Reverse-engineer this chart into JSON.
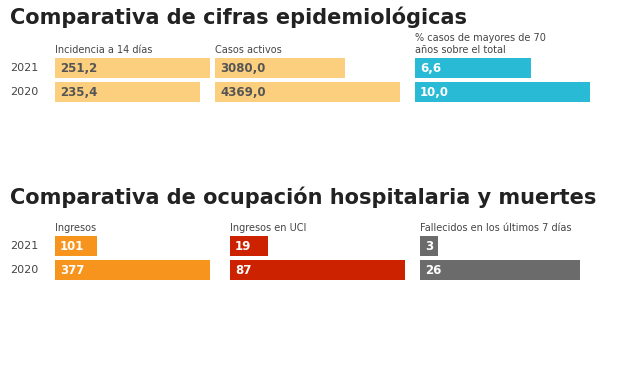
{
  "title1": "Comparativa de cifras epidemiológicas",
  "title2": "Comparativa de ocupación hospitalaria y muertes",
  "section1": {
    "col_labels": [
      "Incidencia a 14 días",
      "Casos activos",
      "% casos de mayores de 70\naños sobre el total"
    ],
    "groups": [
      {
        "color": "#FBCF7D",
        "values": [
          251.2,
          235.4
        ],
        "max_ref": 251.2,
        "display": [
          "251,2",
          "235,4"
        ],
        "text_color": "#555555"
      },
      {
        "color": "#FBCF7D",
        "values": [
          3080.0,
          4369.0
        ],
        "max_ref": 4369.0,
        "display": [
          "3080,0",
          "4369,0"
        ],
        "text_color": "#555555"
      },
      {
        "color": "#29BAD6",
        "values": [
          6.6,
          10.0
        ],
        "max_ref": 10.0,
        "display": [
          "6,6",
          "10,0"
        ],
        "text_color": "#FFFFFF"
      }
    ],
    "years": [
      "2021",
      "2020"
    ]
  },
  "section2": {
    "col_labels": [
      "Ingresos",
      "Ingresos en UCI",
      "Fallecidos en los últimos 7 días"
    ],
    "groups": [
      {
        "color": "#F7941D",
        "values": [
          101,
          377
        ],
        "max_ref": 377,
        "display": [
          "101",
          "377"
        ],
        "text_color": "#FFFFFF"
      },
      {
        "color": "#CC2200",
        "values": [
          19,
          87
        ],
        "max_ref": 87,
        "display": [
          "19",
          "87"
        ],
        "text_color": "#FFFFFF"
      },
      {
        "color": "#6B6B6B",
        "values": [
          3,
          26
        ],
        "max_ref": 26,
        "display": [
          "3",
          "26"
        ],
        "text_color": "#FFFFFF"
      }
    ],
    "years": [
      "2021",
      "2020"
    ]
  },
  "bg_color": "#FFFFFF",
  "text_color": "#222222",
  "year_color": "#444444"
}
